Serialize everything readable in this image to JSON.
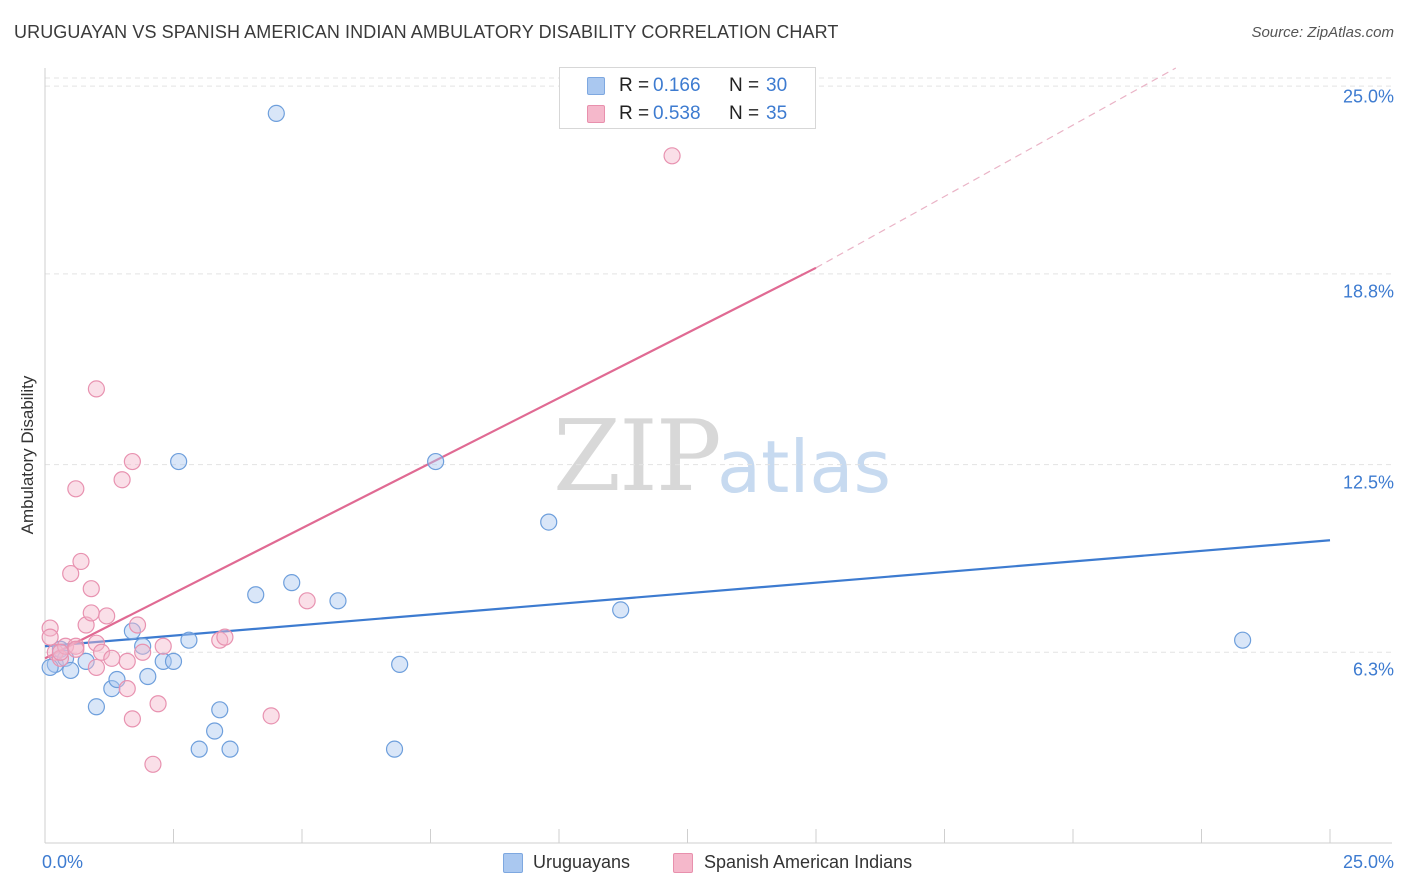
{
  "header": {
    "title": "URUGUAYAN VS SPANISH AMERICAN INDIAN AMBULATORY DISABILITY CORRELATION CHART",
    "source": "Source: ZipAtlas.com"
  },
  "watermark": {
    "zip": "ZIP",
    "atlas": "atlas"
  },
  "legend_top": {
    "rows": [
      {
        "r_label": "R =",
        "r_value": "0.166",
        "n_label": "N =",
        "n_value": "30",
        "color": "#aac8f0"
      },
      {
        "r_label": "R =",
        "r_value": "0.538",
        "n_label": "N =",
        "n_value": "35",
        "color": "#f5b8cb"
      }
    ]
  },
  "legend_bottom": {
    "items": [
      {
        "label": "Uruguayans",
        "color": "#aac8f0"
      },
      {
        "label": "Spanish American Indians",
        "color": "#f5b8cb"
      }
    ]
  },
  "chart_data": {
    "type": "scatter",
    "title": "URUGUAYAN VS SPANISH AMERICAN INDIAN AMBULATORY DISABILITY CORRELATION CHART",
    "xlabel": "",
    "ylabel": "Ambulatory Disability",
    "xlim": [
      0,
      25
    ],
    "ylim": [
      0,
      25.6
    ],
    "x_tick_labels": [
      "0.0%",
      "25.0%"
    ],
    "y_ticks": [
      6.3,
      12.5,
      18.8,
      25.0
    ],
    "y_tick_labels": [
      "6.3%",
      "12.5%",
      "18.8%",
      "25.0%"
    ],
    "grid": true,
    "colors": {
      "blue": "#3d7bd0",
      "pink": "#e06a93",
      "blue_fill": "#aac8f0",
      "pink_fill": "#f5b8cb"
    },
    "series": [
      {
        "name": "Uruguayans",
        "points": [
          [
            0.2,
            5.9
          ],
          [
            0.3,
            6.4
          ],
          [
            0.4,
            6.1
          ],
          [
            0.5,
            5.7
          ],
          [
            0.8,
            6.0
          ],
          [
            1.0,
            4.5
          ],
          [
            1.3,
            5.1
          ],
          [
            1.4,
            5.4
          ],
          [
            1.7,
            7.0
          ],
          [
            1.9,
            6.5
          ],
          [
            2.0,
            5.5
          ],
          [
            2.3,
            6.0
          ],
          [
            2.5,
            6.0
          ],
          [
            2.6,
            12.6
          ],
          [
            2.8,
            6.7
          ],
          [
            3.0,
            3.1
          ],
          [
            3.3,
            3.7
          ],
          [
            3.4,
            4.4
          ],
          [
            3.6,
            3.1
          ],
          [
            4.1,
            8.2
          ],
          [
            4.5,
            24.1
          ],
          [
            4.8,
            8.6
          ],
          [
            5.7,
            8.0
          ],
          [
            6.8,
            3.1
          ],
          [
            6.9,
            5.9
          ],
          [
            7.6,
            12.6
          ],
          [
            9.8,
            10.6
          ],
          [
            11.2,
            7.7
          ],
          [
            23.3,
            6.7
          ],
          [
            0.1,
            5.8
          ]
        ]
      },
      {
        "name": "Spanish American Indians",
        "points": [
          [
            0.1,
            7.1
          ],
          [
            0.1,
            6.8
          ],
          [
            0.2,
            6.3
          ],
          [
            0.3,
            6.1
          ],
          [
            0.4,
            6.5
          ],
          [
            0.5,
            8.9
          ],
          [
            0.6,
            11.7
          ],
          [
            0.6,
            6.5
          ],
          [
            0.7,
            9.3
          ],
          [
            0.8,
            7.2
          ],
          [
            0.9,
            7.6
          ],
          [
            0.9,
            8.4
          ],
          [
            1.0,
            6.6
          ],
          [
            1.0,
            5.8
          ],
          [
            1.0,
            15.0
          ],
          [
            1.1,
            6.3
          ],
          [
            1.2,
            7.5
          ],
          [
            1.3,
            6.1
          ],
          [
            1.5,
            12.0
          ],
          [
            1.6,
            5.1
          ],
          [
            1.6,
            6.0
          ],
          [
            1.7,
            4.1
          ],
          [
            1.7,
            12.6
          ],
          [
            1.8,
            7.2
          ],
          [
            1.9,
            6.3
          ],
          [
            2.1,
            2.6
          ],
          [
            2.2,
            4.6
          ],
          [
            2.3,
            6.5
          ],
          [
            3.4,
            6.7
          ],
          [
            3.5,
            6.8
          ],
          [
            4.4,
            4.2
          ],
          [
            5.1,
            8.0
          ],
          [
            12.2,
            22.7
          ],
          [
            0.3,
            6.3
          ],
          [
            0.6,
            6.4
          ]
        ]
      }
    ],
    "trendlines": [
      {
        "series": "Uruguayans",
        "x": [
          0,
          25
        ],
        "y": [
          6.5,
          10.0
        ],
        "style": "solid"
      },
      {
        "series": "Spanish American Indians",
        "x": [
          0,
          15
        ],
        "y": [
          6.1,
          19.0
        ],
        "style": "solid",
        "extension_x": [
          15,
          22
        ],
        "extension_y": [
          19.0,
          25.6
        ],
        "extension_style": "dashed"
      }
    ]
  }
}
